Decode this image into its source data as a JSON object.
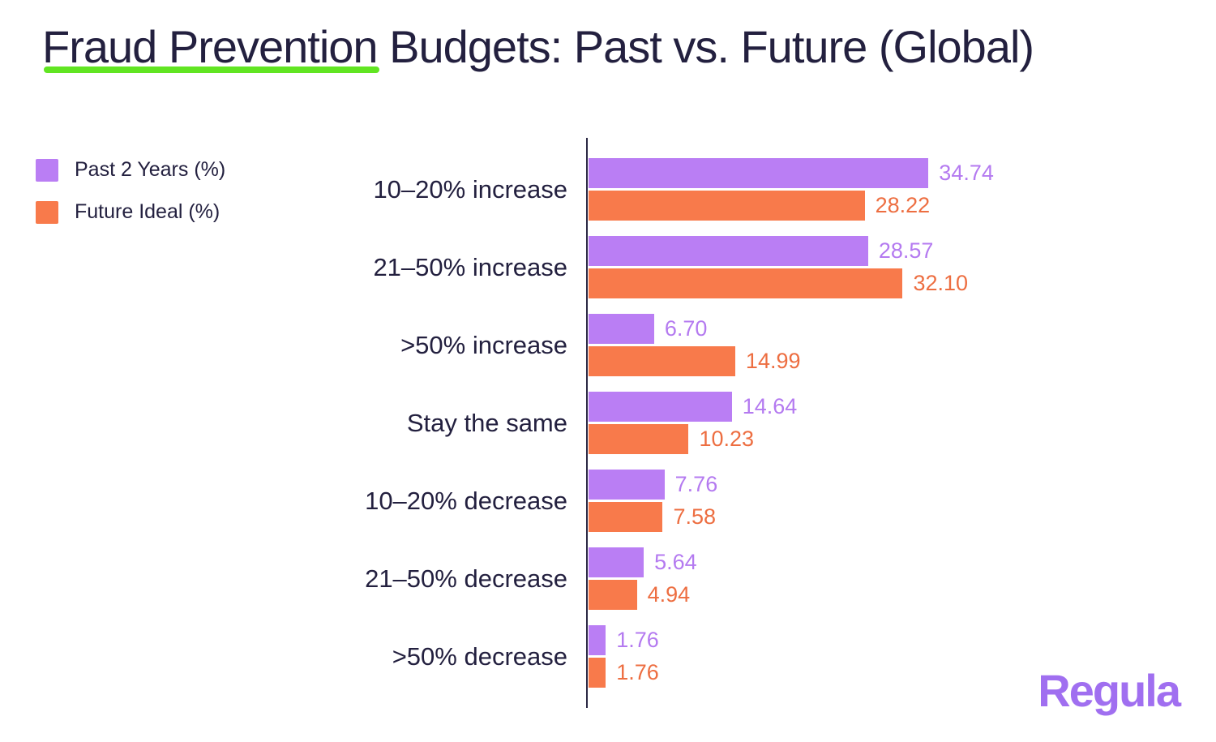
{
  "title": {
    "full": "Fraud Prevention Budgets: Past vs. Future (Global)",
    "underlined": "Fraud Prevention",
    "rest": " Budgets: Past vs. Future (Global)"
  },
  "colors": {
    "bar_past": "#BA7EF4",
    "bar_future": "#F87A4B",
    "value_past": "#B47AF0",
    "value_future": "#ED6E41",
    "title_text": "#23203F",
    "underline_green": "#61E522",
    "axis": "#2B2844",
    "logo_purple": "#A06FF0",
    "background": "#FFFFFF"
  },
  "legend": {
    "items": [
      {
        "label": "Past 2 Years (%)",
        "color": "#BA7EF4"
      },
      {
        "label": "Future Ideal (%)",
        "color": "#F87A4B"
      }
    ]
  },
  "logo": {
    "text": "Regula"
  },
  "chart_data": {
    "type": "bar",
    "orientation": "horizontal",
    "title": "Fraud Prevention Budgets: Past vs. Future (Global)",
    "xlabel": "",
    "ylabel": "",
    "xlim": [
      0,
      36
    ],
    "grid": false,
    "legend_position": "top-left",
    "value_labels": "outside-end",
    "categories": [
      "10–20% increase",
      "21–50% increase",
      ">50% increase",
      "Stay the same",
      "10–20% decrease",
      "21–50% decrease",
      ">50% decrease"
    ],
    "series": [
      {
        "name": "Past 2 Years (%)",
        "color": "#BA7EF4",
        "values": [
          34.74,
          28.57,
          6.7,
          14.64,
          7.76,
          5.64,
          1.76
        ],
        "labels": [
          "34.74",
          "28.57",
          "6.70",
          "14.64",
          "7.76",
          "5.64",
          "1.76"
        ]
      },
      {
        "name": "Future Ideal (%)",
        "color": "#F87A4B",
        "values": [
          28.22,
          32.1,
          14.99,
          10.23,
          7.58,
          4.94,
          1.76
        ],
        "labels": [
          "28.22",
          "32.10",
          "14.99",
          "10.23",
          "7.58",
          "4.94",
          "1.76"
        ]
      }
    ]
  }
}
